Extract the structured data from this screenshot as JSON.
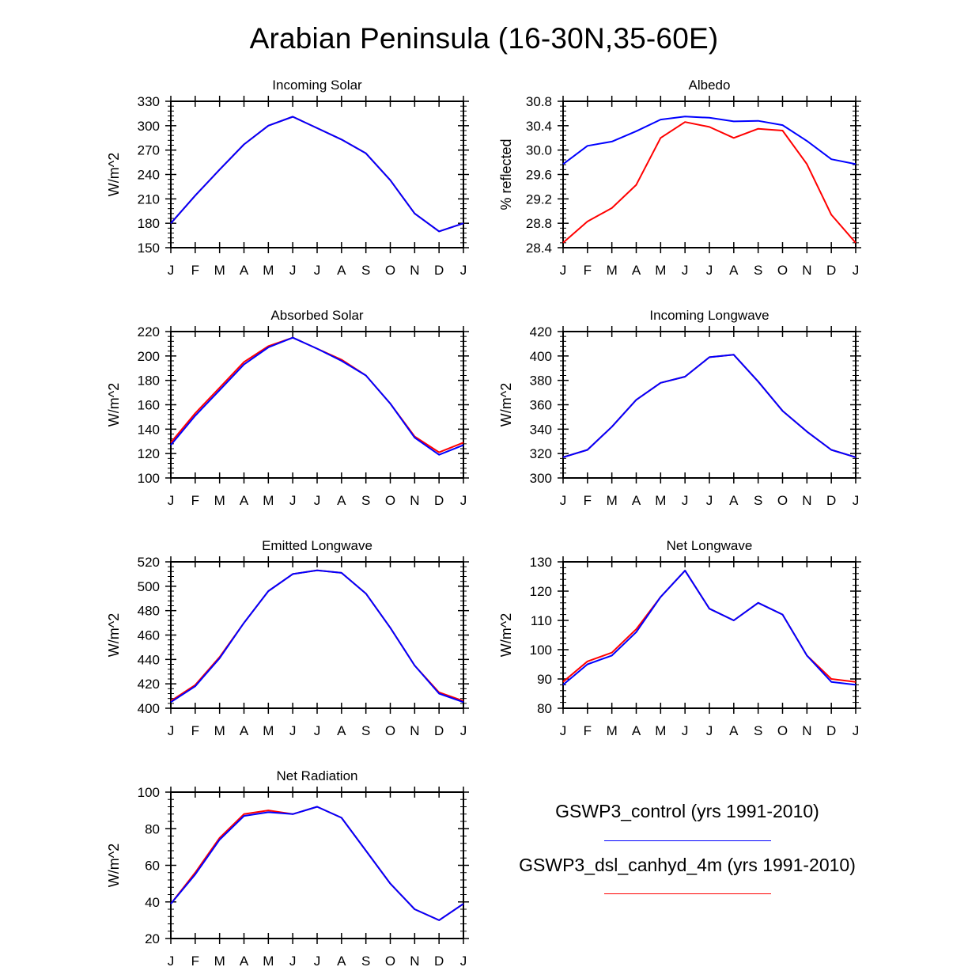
{
  "title": "Arabian Peninsula (16-30N,35-60E)",
  "month_labels": [
    "J",
    "F",
    "M",
    "A",
    "M",
    "J",
    "J",
    "A",
    "S",
    "O",
    "N",
    "D",
    "J"
  ],
  "colors": {
    "control": "#0000ff",
    "experiment": "#ff0000",
    "axis": "#000000"
  },
  "legend": [
    {
      "name": "GSWP3_control (yrs 1991-2010)",
      "color": "#0000ff"
    },
    {
      "name": "GSWP3_dsl_canhyd_4m (yrs 1991-2010)",
      "color": "#ff0000"
    }
  ],
  "chart_data": [
    {
      "type": "line",
      "title": "Incoming Solar",
      "ylabel": "W/m^2",
      "ylim": [
        150,
        330
      ],
      "yticks": [
        150,
        180,
        210,
        240,
        270,
        300,
        330
      ],
      "ytick_labels": [
        "150",
        "180",
        "210",
        "240",
        "270",
        "300",
        "330"
      ],
      "series": [
        {
          "name": "GSWP3_control (yrs 1991-2010)",
          "color": "#0000ff",
          "values": [
            180,
            214,
            246,
            277,
            300,
            311,
            297,
            283,
            266,
            233,
            192,
            170,
            180
          ]
        },
        {
          "name": "GSWP3_dsl_canhyd_4m (yrs 1991-2010)",
          "color": "#ff0000",
          "values": [
            180,
            214,
            246,
            277,
            300,
            311,
            297,
            283,
            266,
            233,
            192,
            170,
            180
          ]
        }
      ]
    },
    {
      "type": "line",
      "title": "Albedo",
      "ylabel": "% reflected",
      "ylim": [
        28.4,
        30.8
      ],
      "yticks": [
        28.4,
        28.8,
        29.2,
        29.6,
        30.0,
        30.4,
        30.8
      ],
      "ytick_labels": [
        "28.4",
        "28.8",
        "29.2",
        "29.6",
        "30.0",
        "30.4",
        "30.8"
      ],
      "series": [
        {
          "name": "GSWP3_control (yrs 1991-2010)",
          "color": "#0000ff",
          "values": [
            29.77,
            30.07,
            30.14,
            30.31,
            30.5,
            30.55,
            30.53,
            30.47,
            30.48,
            30.41,
            30.15,
            29.85,
            29.77
          ]
        },
        {
          "name": "GSWP3_dsl_canhyd_4m (yrs 1991-2010)",
          "color": "#ff0000",
          "values": [
            28.48,
            28.83,
            29.05,
            29.43,
            30.2,
            30.46,
            30.38,
            30.2,
            30.35,
            30.32,
            29.77,
            28.94,
            28.48
          ]
        }
      ]
    },
    {
      "type": "line",
      "title": "Absorbed Solar",
      "ylabel": "W/m^2",
      "ylim": [
        100,
        220
      ],
      "yticks": [
        100,
        120,
        140,
        160,
        180,
        200,
        220
      ],
      "ytick_labels": [
        "100",
        "120",
        "140",
        "160",
        "180",
        "200",
        "220"
      ],
      "series": [
        {
          "name": "GSWP3_control (yrs 1991-2010)",
          "color": "#0000ff",
          "values": [
            127,
            151,
            172,
            193,
            207,
            215,
            206,
            196,
            184,
            161,
            133,
            119,
            127
          ]
        },
        {
          "name": "GSWP3_dsl_canhyd_4m (yrs 1991-2010)",
          "color": "#ff0000",
          "values": [
            129,
            153,
            174,
            195,
            208,
            215,
            206,
            197,
            184,
            161,
            134,
            121,
            129
          ]
        }
      ]
    },
    {
      "type": "line",
      "title": "Incoming Longwave",
      "ylabel": "W/m^2",
      "ylim": [
        300,
        420
      ],
      "yticks": [
        300,
        320,
        340,
        360,
        380,
        400,
        420
      ],
      "ytick_labels": [
        "300",
        "320",
        "340",
        "360",
        "380",
        "400",
        "420"
      ],
      "series": [
        {
          "name": "GSWP3_control (yrs 1991-2010)",
          "color": "#0000ff",
          "values": [
            317,
            323,
            342,
            364,
            378,
            383,
            399,
            401,
            379,
            355,
            338,
            323,
            317
          ]
        },
        {
          "name": "GSWP3_dsl_canhyd_4m (yrs 1991-2010)",
          "color": "#ff0000",
          "values": [
            317,
            323,
            342,
            364,
            378,
            383,
            399,
            401,
            379,
            355,
            338,
            323,
            317
          ]
        }
      ]
    },
    {
      "type": "line",
      "title": "Emitted Longwave",
      "ylabel": "W/m^2",
      "ylim": [
        400,
        520
      ],
      "yticks": [
        400,
        420,
        440,
        460,
        480,
        500,
        520
      ],
      "ytick_labels": [
        "400",
        "420",
        "440",
        "460",
        "480",
        "500",
        "520"
      ],
      "series": [
        {
          "name": "GSWP3_control (yrs 1991-2010)",
          "color": "#0000ff",
          "values": [
            405,
            418,
            441,
            470,
            496,
            510,
            513,
            511,
            494,
            466,
            435,
            412,
            405
          ]
        },
        {
          "name": "GSWP3_dsl_canhyd_4m (yrs 1991-2010)",
          "color": "#ff0000",
          "values": [
            406,
            419,
            442,
            470,
            496,
            510,
            513,
            511,
            494,
            466,
            435,
            413,
            406
          ]
        }
      ]
    },
    {
      "type": "line",
      "title": "Net Longwave",
      "ylabel": "W/m^2",
      "ylim": [
        80,
        130
      ],
      "yticks": [
        80,
        90,
        100,
        110,
        120,
        130
      ],
      "ytick_labels": [
        "80",
        "90",
        "100",
        "110",
        "120",
        "130"
      ],
      "series": [
        {
          "name": "GSWP3_control (yrs 1991-2010)",
          "color": "#0000ff",
          "values": [
            88,
            95,
            98,
            106,
            118,
            127,
            114,
            110,
            116,
            112,
            98,
            89,
            88
          ]
        },
        {
          "name": "GSWP3_dsl_canhyd_4m (yrs 1991-2010)",
          "color": "#ff0000",
          "values": [
            89,
            96,
            99,
            107,
            118,
            127,
            114,
            110,
            116,
            112,
            98,
            90,
            89
          ]
        }
      ]
    },
    {
      "type": "line",
      "title": "Net Radiation",
      "ylabel": "W/m^2",
      "ylim": [
        20,
        100
      ],
      "yticks": [
        20,
        40,
        60,
        80,
        100
      ],
      "ytick_labels": [
        "20",
        "40",
        "60",
        "80",
        "100"
      ],
      "series": [
        {
          "name": "GSWP3_control (yrs 1991-2010)",
          "color": "#0000ff",
          "values": [
            39,
            55,
            74,
            87,
            89,
            88,
            92,
            86,
            68,
            50,
            36,
            30,
            39
          ]
        },
        {
          "name": "GSWP3_dsl_canhyd_4m (yrs 1991-2010)",
          "color": "#ff0000",
          "values": [
            39,
            56,
            75,
            88,
            90,
            88,
            92,
            86,
            68,
            50,
            36,
            30,
            39
          ]
        }
      ]
    }
  ]
}
